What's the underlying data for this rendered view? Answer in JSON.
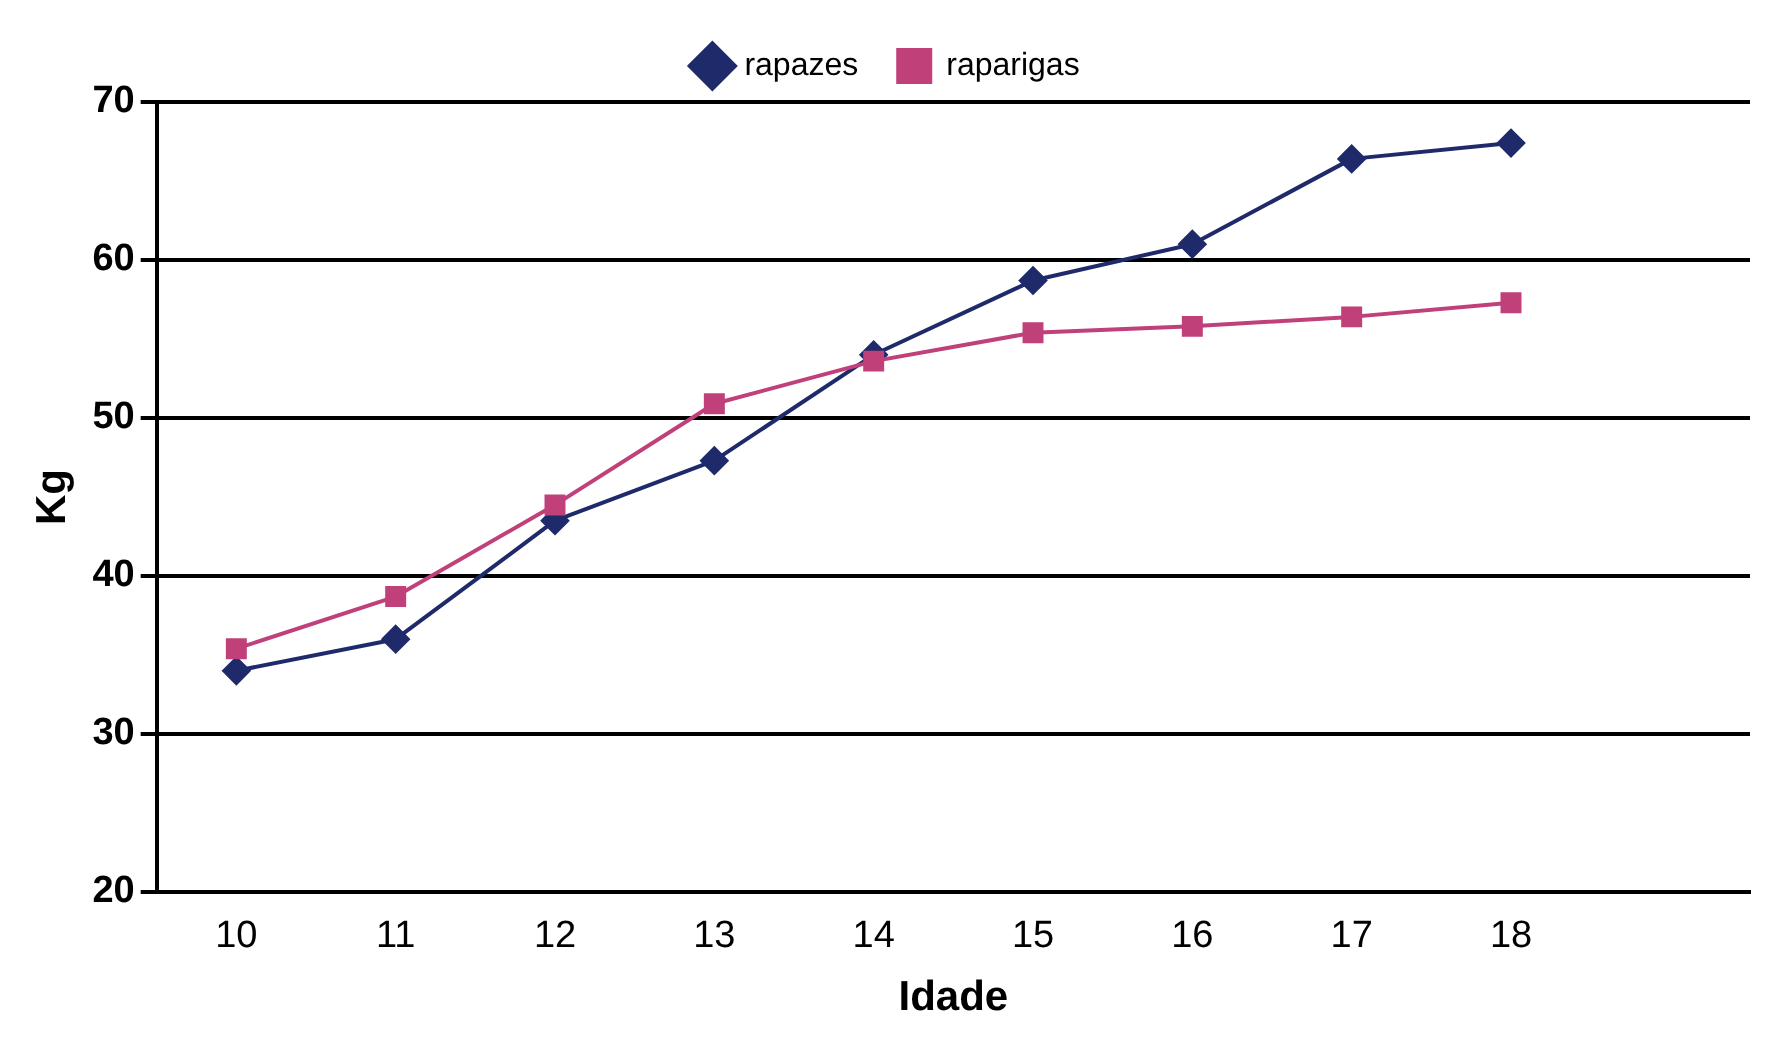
{
  "chart_data": {
    "type": "line",
    "xlabel": "Idade",
    "ylabel": "Kg",
    "categories": [
      "10",
      "11",
      "12",
      "13",
      "14",
      "15",
      "16",
      "17",
      "18",
      null
    ],
    "series": [
      {
        "name": "rapazes",
        "color": "#1f2a6b",
        "marker": "diamond",
        "values": [
          34,
          36,
          43.5,
          47.3,
          54,
          58.7,
          61,
          66.4,
          67.4,
          null
        ]
      },
      {
        "name": "raparigas",
        "color": "#c0407a",
        "marker": "square",
        "values": [
          35.4,
          38.7,
          44.5,
          50.9,
          53.6,
          55.4,
          55.8,
          56.4,
          57.3,
          null
        ]
      }
    ],
    "ylim": [
      20,
      70
    ],
    "yticks": [
      20,
      30,
      40,
      50,
      60,
      70
    ],
    "grid": "y",
    "legend": "top"
  }
}
